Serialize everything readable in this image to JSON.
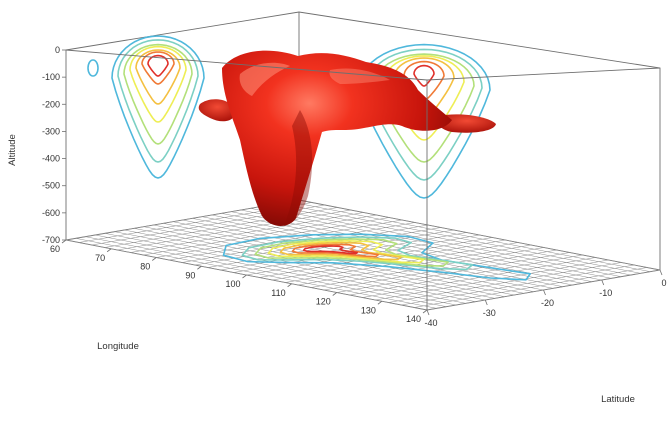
{
  "chart_data": {
    "type": "surface3d",
    "title": "",
    "axes": {
      "altitude": {
        "label": "Altitude",
        "range": [
          -700,
          0
        ],
        "ticks": [
          "0",
          "-100",
          "-200",
          "-300",
          "-400",
          "-500",
          "-600",
          "-700"
        ]
      },
      "longitude": {
        "label": "Longitude",
        "range": [
          60,
          140
        ],
        "ticks": [
          "60",
          "70",
          "80",
          "90",
          "100",
          "110",
          "120",
          "130",
          "140"
        ]
      },
      "latitude": {
        "label": "Latitude",
        "range": [
          -40,
          0
        ],
        "ticks": [
          "-40",
          "-30",
          "-20",
          "-10",
          "0"
        ]
      }
    },
    "isosurface": {
      "color": "#d81e14",
      "min_altitude": -640
    },
    "projections": [
      "back-wall contours",
      "side-wall contours",
      "floor contours"
    ],
    "contour_colors": [
      "#4fb8dc",
      "#7cd0c4",
      "#b3e07a",
      "#eeee55",
      "#f4c040",
      "#f07a36",
      "#e0302a"
    ],
    "grid": true
  }
}
